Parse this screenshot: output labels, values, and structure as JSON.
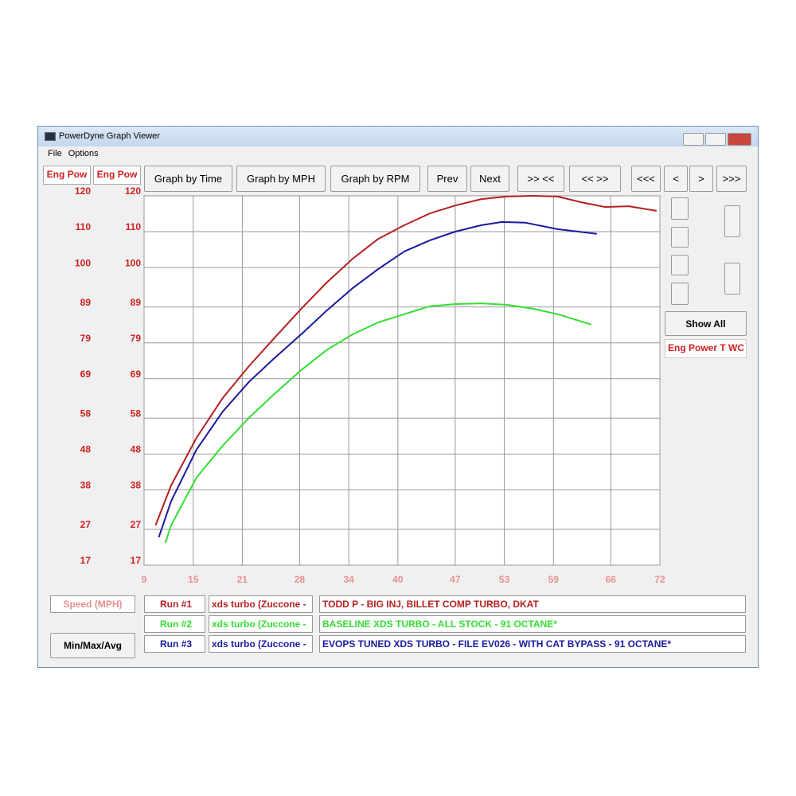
{
  "window": {
    "title": "PowerDyne Graph Viewer",
    "menu": [
      "File",
      "Options"
    ]
  },
  "toolbar": {
    "channel_tabs": [
      "Eng Pow",
      "Eng Pow"
    ],
    "buttons": [
      "Graph by Time",
      "Graph by MPH",
      "Graph by RPM",
      "Prev",
      "Next",
      ">> <<",
      "<< >>",
      "<<<",
      "<",
      ">",
      ">>>"
    ]
  },
  "side_panel": {
    "show_all": "Show All",
    "channel": "Eng Power T WC"
  },
  "footer": {
    "button": "Min/Max/Avg",
    "runs": [
      {
        "file": "xds turbo (Zuccone -",
        "description": "TODD P - BIG INJ, BILLET COMP TURBO, DKAT"
      },
      {
        "file": "xds turbo (Zuccone -",
        "description": "BASELINE XDS TURBO -  ALL STOCK - 91 OCTANE*"
      },
      {
        "file": "xds turbo (Zuccone -",
        "description": "EVOPS TUNED XDS TURBO -  FILE EV026 - WITH CAT BYPASS - 91 OCTANE*"
      }
    ]
  },
  "chart_data": {
    "type": "line",
    "x_label": "Speed (MPH)",
    "xlim": [
      9,
      72
    ],
    "xticks": [
      9,
      15,
      21,
      28,
      34,
      40,
      47,
      53,
      59,
      66,
      72
    ],
    "ylim": [
      17,
      120
    ],
    "yticks": [
      17,
      27,
      38,
      48,
      58,
      69,
      79,
      89,
      100,
      110,
      120
    ],
    "y2lim": [
      17,
      120
    ],
    "y2ticks": [
      17,
      27,
      38,
      48,
      58,
      69,
      79,
      89,
      100,
      110,
      120
    ],
    "grid": true,
    "series": [
      {
        "name": "Run #1",
        "color": "#b52020",
        "x": [
          10.4,
          12.3,
          15.4,
          18.6,
          21.8,
          24.9,
          28.2,
          31.3,
          34.5,
          37.6,
          40.8,
          43.9,
          47.0,
          50.2,
          53.3,
          56.5,
          59.5,
          62.4,
          65.3,
          68.2,
          71.6
        ],
        "values": [
          28.1,
          39.2,
          52.5,
          63.6,
          72.5,
          80.3,
          88.5,
          95.8,
          102.5,
          108.0,
          111.8,
          115.1,
          117.3,
          119.1,
          119.8,
          120.0,
          119.8,
          118.2,
          116.9,
          117.1,
          115.8
        ]
      },
      {
        "name": "Run #2",
        "color": "#33dd33",
        "x": [
          11.6,
          12.3,
          15.4,
          18.6,
          21.8,
          24.9,
          28.2,
          31.3,
          34.5,
          37.6,
          40.8,
          43.9,
          47.0,
          50.2,
          53.3,
          56.5,
          59.5,
          63.6
        ],
        "values": [
          23.2,
          28.1,
          41.4,
          50.3,
          58.1,
          64.7,
          71.4,
          77.0,
          81.4,
          84.7,
          87.0,
          89.2,
          89.8,
          90.0,
          89.6,
          88.5,
          87.0,
          84.1
        ]
      },
      {
        "name": "Run #3",
        "color": "#1a1aa0",
        "x": [
          10.8,
          12.3,
          15.4,
          18.6,
          21.8,
          24.9,
          28.2,
          31.3,
          34.5,
          37.6,
          40.8,
          43.9,
          47.0,
          50.2,
          52.7,
          55.6,
          59.5,
          64.3
        ],
        "values": [
          24.8,
          34.8,
          49.2,
          59.8,
          68.1,
          74.7,
          81.4,
          88.0,
          94.3,
          99.6,
          104.5,
          107.6,
          110.0,
          111.8,
          112.7,
          112.5,
          110.7,
          109.4
        ]
      }
    ]
  }
}
